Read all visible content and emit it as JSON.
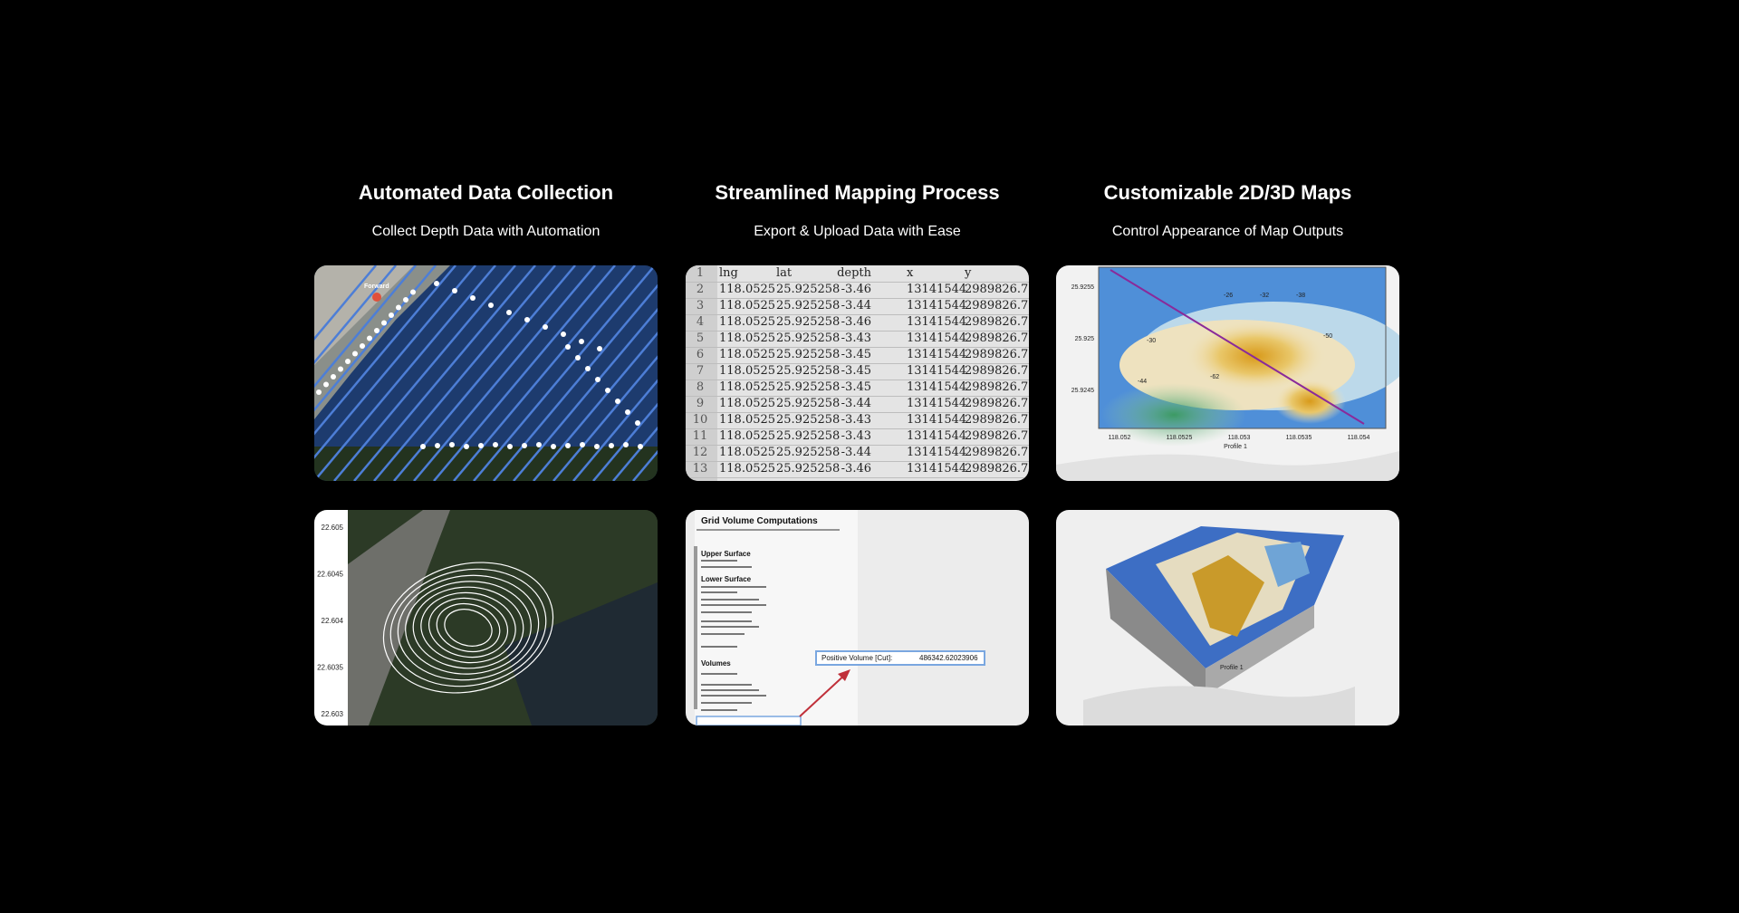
{
  "columns": [
    {
      "title": "Automated Data Collection",
      "subtitle": "Collect Depth Data with Automation",
      "route_label": "Forward",
      "contour_ticks": [
        "22.605",
        "22.6045",
        "22.604",
        "22.6035",
        "22.603"
      ]
    },
    {
      "title": "Streamlined Mapping Process",
      "subtitle": "Export & Upload Data with Ease",
      "sheet": {
        "header": [
          "1",
          "lng",
          "lat",
          "depth",
          "x",
          "y"
        ],
        "rows": [
          [
            "2",
            "118.0525",
            "25.925258",
            "-3.46",
            "13141544",
            "2989826.7"
          ],
          [
            "3",
            "118.0525",
            "25.925258",
            "-3.44",
            "13141544",
            "2989826.7"
          ],
          [
            "4",
            "118.0525",
            "25.925258",
            "-3.46",
            "13141544",
            "2989826.7"
          ],
          [
            "5",
            "118.0525",
            "25.925258",
            "-3.43",
            "13141544",
            "2989826.7"
          ],
          [
            "6",
            "118.0525",
            "25.925258",
            "-3.45",
            "13141544",
            "2989826.7"
          ],
          [
            "7",
            "118.0525",
            "25.925258",
            "-3.45",
            "13141544",
            "2989826.7"
          ],
          [
            "8",
            "118.0525",
            "25.925258",
            "-3.45",
            "13141544",
            "2989826.7"
          ],
          [
            "9",
            "118.0525",
            "25.925258",
            "-3.44",
            "13141544",
            "2989826.7"
          ],
          [
            "10",
            "118.0525",
            "25.925258",
            "-3.43",
            "13141544",
            "2989826.7"
          ],
          [
            "11",
            "118.0525",
            "25.925258",
            "-3.43",
            "13141544",
            "2989826.7"
          ],
          [
            "12",
            "118.0525",
            "25.925258",
            "-3.44",
            "13141544",
            "2989826.7"
          ],
          [
            "13",
            "118.0525",
            "25.925258",
            "-3.46",
            "13141544",
            "2989826.7"
          ]
        ]
      },
      "report": {
        "title": "Grid Volume Computations",
        "sections": [
          "Upper Surface",
          "Lower Surface",
          "Volumes"
        ],
        "highlight_label": "Positive Volume [Cut]:",
        "highlight_value": "486342.62023906"
      }
    },
    {
      "title": "Customizable 2D/3D Maps",
      "subtitle": "Control Appearance of Map Outputs",
      "map2d": {
        "yticks": [
          "25.9255",
          "25.925",
          "25.9245"
        ],
        "xticks": [
          "118.052",
          "118.0525",
          "118.053",
          "118.0535",
          "118.054"
        ],
        "profile": "Profile 1",
        "contours": [
          "-30",
          "-26",
          "-32",
          "-38",
          "-50",
          "-44",
          "-62"
        ]
      },
      "map3d": {
        "profile": "Profile 1"
      }
    }
  ]
}
